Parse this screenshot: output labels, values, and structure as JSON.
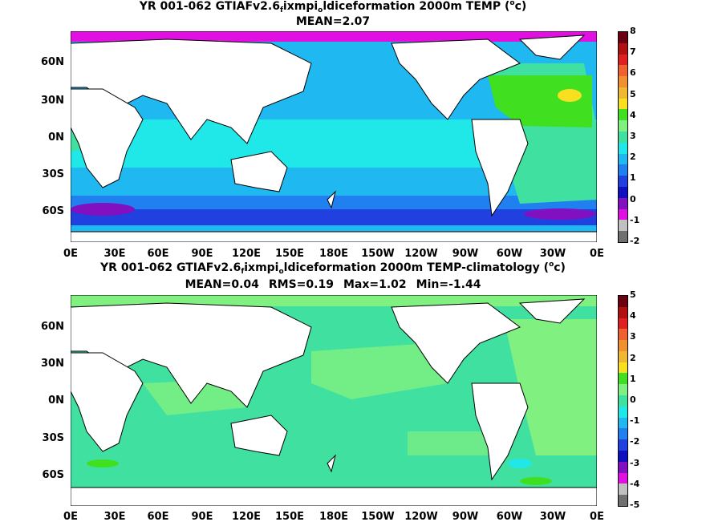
{
  "chart_data": [
    {
      "type": "heatmap",
      "title_parts": [
        "YR 001-062 GTIAFv2.6",
        "f",
        "ixmpi",
        "o",
        "ldiceformation 2000m TEMP (",
        "o",
        "c)"
      ],
      "stats": [
        "MEAN=2.07"
      ],
      "x_ticks": [
        "0E",
        "30E",
        "60E",
        "90E",
        "120E",
        "150E",
        "180E",
        "150W",
        "120W",
        "90W",
        "60W",
        "30W",
        "0E"
      ],
      "y_ticks": [
        "60N",
        "30N",
        "0N",
        "30S",
        "60S"
      ],
      "colorbar": {
        "ticks": [
          "8",
          "7",
          "6",
          "5",
          "4",
          "3",
          "2",
          "1",
          "0",
          "-1",
          "-2"
        ],
        "colors": [
          "#6a0010",
          "#b01010",
          "#e02020",
          "#f06030",
          "#f09030",
          "#f0b830",
          "#f8e020",
          "#40e020",
          "#80f080",
          "#40e0a0",
          "#20e8e8",
          "#20b8f0",
          "#2080f0",
          "#2040e0",
          "#1010c0",
          "#8010c0",
          "#e010e0",
          "#c0c0c0",
          "#707070"
        ]
      },
      "colors": {
        "land": "#ffffff",
        "coast": "#000000"
      }
    },
    {
      "type": "heatmap",
      "title_parts": [
        "YR 001-062 GTIAFv2.6",
        "f",
        "ixmpi",
        "o",
        "ldiceformation 2000m TEMP-climatology (",
        "o",
        "c)"
      ],
      "stats": [
        "MEAN=0.04",
        "RMS=0.19",
        "Max=1.02",
        "Min=-1.44"
      ],
      "x_ticks": [
        "0E",
        "30E",
        "60E",
        "90E",
        "120E",
        "150E",
        "180E",
        "150W",
        "120W",
        "90W",
        "60W",
        "30W",
        "0E"
      ],
      "y_ticks": [
        "60N",
        "30N",
        "0N",
        "30S",
        "60S"
      ],
      "colorbar": {
        "ticks": [
          "5",
          "4",
          "3",
          "2",
          "1",
          "0",
          "-1",
          "-2",
          "-3",
          "-4",
          "-5"
        ],
        "colors": [
          "#6a0010",
          "#b01010",
          "#e02020",
          "#f06030",
          "#f09030",
          "#f0b830",
          "#f8e020",
          "#40e020",
          "#80f080",
          "#40e0a0",
          "#20e8e8",
          "#20b8f0",
          "#2080f0",
          "#2040e0",
          "#1010c0",
          "#8010c0",
          "#e010e0",
          "#c0c0c0",
          "#707070"
        ]
      },
      "colors": {
        "land": "#ffffff",
        "coast": "#000000"
      }
    }
  ]
}
